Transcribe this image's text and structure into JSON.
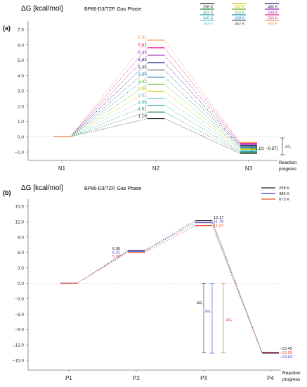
{
  "chart_data": [
    {
      "type": "line",
      "panel_label": "(a)",
      "ylabel": "ΔG  [kcal/mol]",
      "subtitle": "BP86-D3/TZP, Gas Phase",
      "categories": [
        "N1",
        "N2",
        "N3"
      ],
      "xlabel_line1": "Reaction",
      "xlabel_line2": "progress",
      "ylim": [
        -1.5,
        7.5
      ],
      "yticks": [
        "7.0",
        "6.0",
        "5.0",
        "4.0",
        "3.0",
        "2.0",
        "1.0",
        "0.0",
        "−1.0"
      ],
      "ytick_values": [
        7,
        6,
        5,
        4,
        3,
        2,
        1,
        0,
        -1
      ],
      "n2_labels": [
        "6.31",
        "5.81",
        "5.33",
        "4.84",
        "4.36",
        "3.89",
        "3.42",
        "2.96",
        "2.51",
        "2.05",
        "1.61",
        "1.18"
      ],
      "range_label": "[−1.10; −0.37]",
      "delta_label": "ΔG",
      "delta_sub": "r",
      "series": [
        {
          "name": "298 K",
          "color": "#222222",
          "values": [
            0,
            1.18,
            -1.1
          ]
        },
        {
          "name": "322 K",
          "color": "#2e8b57",
          "values": [
            0,
            1.61,
            -1.03
          ]
        },
        {
          "name": "345 K",
          "color": "#20a0a0",
          "values": [
            0,
            2.05,
            -0.97
          ]
        },
        {
          "name": "368 K",
          "color": "#6ec6e0",
          "values": [
            0,
            2.51,
            -0.9
          ]
        },
        {
          "name": "392 K",
          "color": "#c8c800",
          "values": [
            0,
            2.96,
            -0.83
          ]
        },
        {
          "name": "415 K",
          "color": "#66bb33",
          "values": [
            0,
            3.42,
            -0.77
          ]
        },
        {
          "name": "439 K",
          "color": "#1f86b8",
          "values": [
            0,
            3.89,
            -0.7
          ]
        },
        {
          "name": "462 K",
          "color": "#555555",
          "values": [
            0,
            4.36,
            -0.63
          ]
        },
        {
          "name": "486 K",
          "color": "#1a237e",
          "values": [
            0,
            4.84,
            -0.57
          ]
        },
        {
          "name": "509 K",
          "color": "#9c27b0",
          "values": [
            0,
            5.33,
            -0.5
          ]
        },
        {
          "name": "533 K",
          "color": "#e91e8c",
          "values": [
            0,
            5.81,
            -0.43
          ]
        },
        {
          "name": "556 K",
          "color": "#f0a060",
          "values": [
            0,
            6.31,
            -0.37
          ]
        }
      ]
    },
    {
      "type": "line",
      "panel_label": "(b)",
      "ylabel": "ΔG  [kcal/mol]",
      "subtitle": "BP86-D3/TZP,  Gas Phase",
      "categories": [
        "P1",
        "P2",
        "P3",
        "P4"
      ],
      "xlabel_line1": "Reaction",
      "xlabel_line2": "progress",
      "ylim": [
        -16.5,
        16.8
      ],
      "yticks": [
        "15.0",
        "12.0",
        "9.0",
        "6.0",
        "3.0",
        "0.0",
        "−3.0",
        "−6.0",
        "−9.0",
        "−12.0",
        "−15.0"
      ],
      "ytick_values": [
        15,
        12,
        9,
        6,
        3,
        0,
        -3,
        -6,
        -9,
        -12,
        -15
      ],
      "p2_labels": [
        "6.36",
        "6.21",
        "5.96"
      ],
      "p3_labels": [
        "12.17",
        "11.78",
        "11.22"
      ],
      "p4_labels": [
        "−13.45",
        "−13.55",
        "−13.63"
      ],
      "delta_label": "ΔG",
      "delta_sub": "r",
      "series": [
        {
          "name": "298 K",
          "color": "#222222",
          "values": [
            0,
            6.36,
            12.17,
            -13.45
          ]
        },
        {
          "name": "486 K",
          "color": "#3b3bd6",
          "values": [
            0,
            6.21,
            11.78,
            -13.63
          ]
        },
        {
          "name": "673 K",
          "color": "#e8502a",
          "values": [
            0,
            5.96,
            11.22,
            -13.55
          ]
        }
      ]
    }
  ]
}
